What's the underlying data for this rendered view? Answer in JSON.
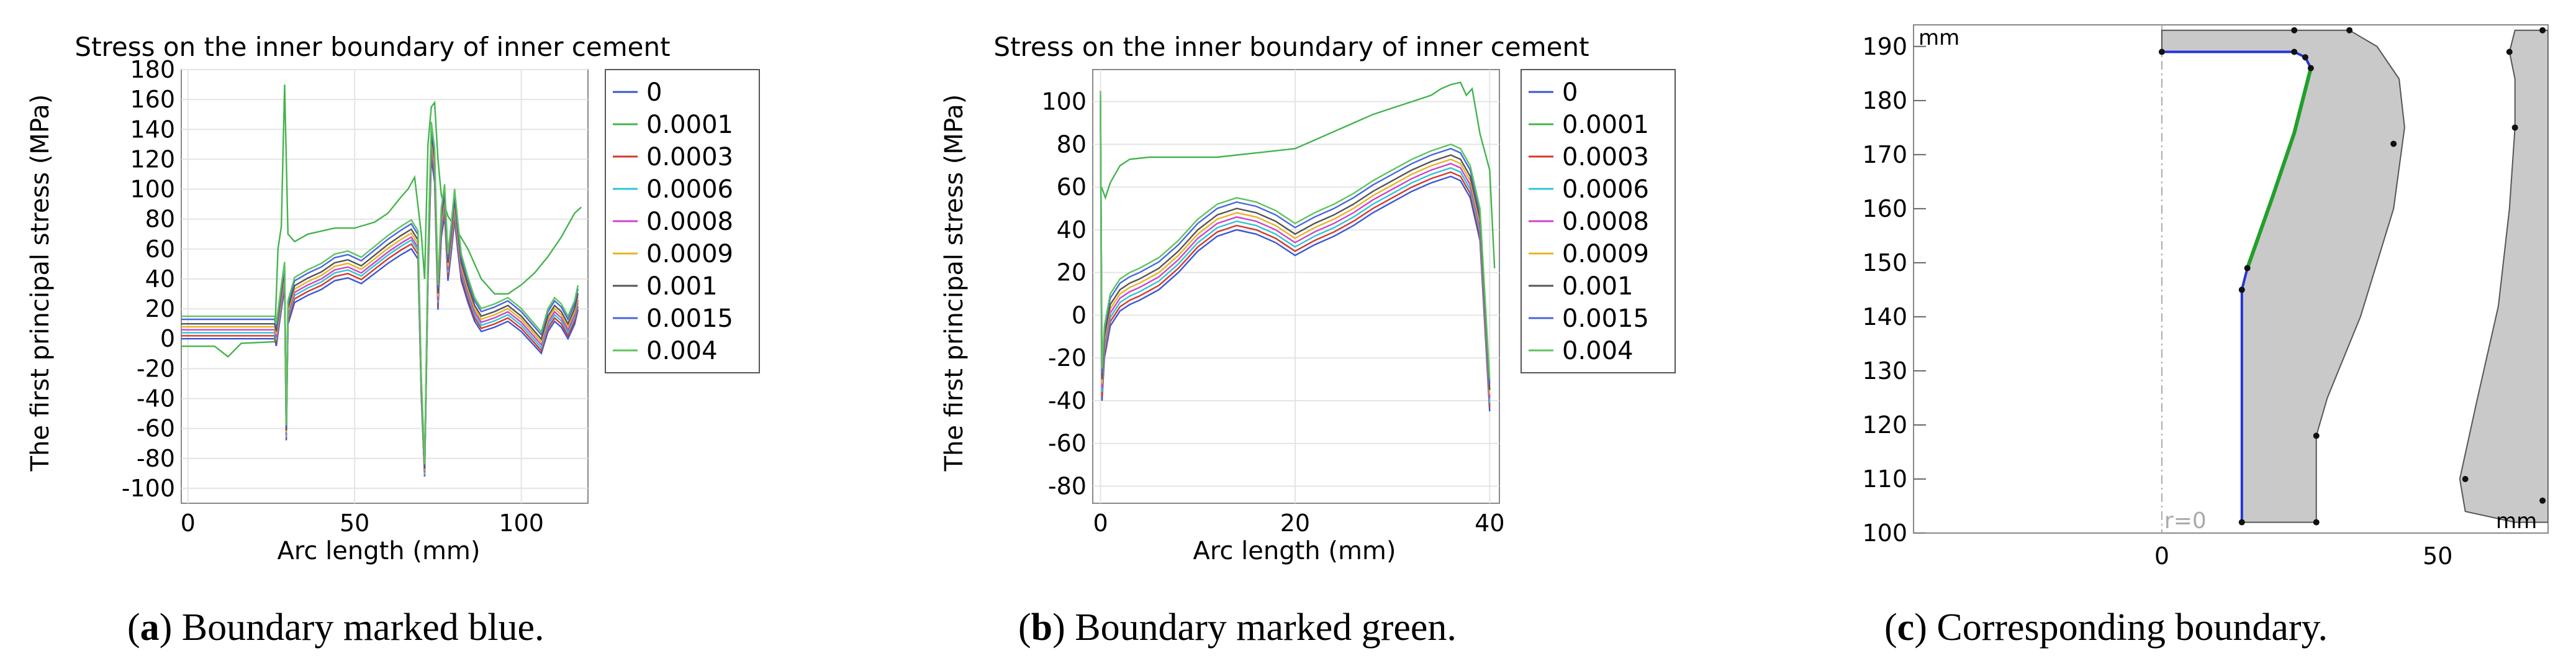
{
  "panels": [
    {
      "id": "a",
      "caption_letter": "a",
      "caption_text": ") Boundary marked blue.",
      "chart_data": {
        "type": "line",
        "title": "Stress on the inner boundary of inner cement",
        "xlabel": "Arc length (mm)",
        "ylabel": "The first principal stress (MPa)",
        "xlim": [
          -2,
          120
        ],
        "ylim": [
          -110,
          180
        ],
        "xticks": [
          0,
          50,
          100
        ],
        "yticks": [
          -100,
          -80,
          -60,
          -40,
          -20,
          0,
          20,
          40,
          60,
          80,
          100,
          120,
          140,
          160,
          180
        ],
        "legend_position": "right",
        "series": [
          {
            "name": "0",
            "color": "#3a56d6",
            "offset": 0,
            "scale": 0.97
          },
          {
            "name": "0.0001",
            "color": "#44b44c",
            "offset": 0,
            "scale": 1.0,
            "special": true
          },
          {
            "name": "0.0003",
            "color": "#d4382c",
            "offset": 2,
            "scale": 0.99
          },
          {
            "name": "0.0006",
            "color": "#2ec4d6",
            "offset": 4,
            "scale": 1.0
          },
          {
            "name": "0.0008",
            "color": "#cc44cc",
            "offset": 6,
            "scale": 1.0
          },
          {
            "name": "0.0009",
            "color": "#e6b422",
            "offset": 8,
            "scale": 1.01
          },
          {
            "name": "0.001",
            "color": "#555555",
            "offset": 10,
            "scale": 1.02
          },
          {
            "name": "0.0015",
            "color": "#4a66e0",
            "offset": 13,
            "scale": 1.03
          },
          {
            "name": "0.004",
            "color": "#5cc45c",
            "offset": 15,
            "scale": 1.04
          }
        ],
        "base_curve": [
          [
            -2,
            0
          ],
          [
            26,
            0
          ],
          [
            26.5,
            -5
          ],
          [
            28,
            20
          ],
          [
            29,
            35
          ],
          [
            29.5,
            -70
          ],
          [
            30,
            10
          ],
          [
            32,
            25
          ],
          [
            36,
            30
          ],
          [
            40,
            34
          ],
          [
            44,
            40
          ],
          [
            48,
            42
          ],
          [
            52,
            38
          ],
          [
            56,
            45
          ],
          [
            60,
            52
          ],
          [
            64,
            58
          ],
          [
            67,
            62
          ],
          [
            69,
            55
          ],
          [
            70,
            -40
          ],
          [
            71,
            -95
          ],
          [
            72,
            40
          ],
          [
            73,
            125
          ],
          [
            74,
            108
          ],
          [
            75,
            20
          ],
          [
            76,
            70
          ],
          [
            77,
            85
          ],
          [
            78,
            40
          ],
          [
            79,
            60
          ],
          [
            80,
            82
          ],
          [
            81,
            60
          ],
          [
            82,
            40
          ],
          [
            84,
            25
          ],
          [
            86,
            12
          ],
          [
            88,
            5
          ],
          [
            92,
            8
          ],
          [
            96,
            12
          ],
          [
            100,
            5
          ],
          [
            104,
            -5
          ],
          [
            106,
            -10
          ],
          [
            108,
            5
          ],
          [
            110,
            12
          ],
          [
            112,
            8
          ],
          [
            114,
            0
          ],
          [
            116,
            10
          ],
          [
            117,
            20
          ]
        ],
        "special_curve": [
          [
            -2,
            -5
          ],
          [
            8,
            -5
          ],
          [
            12,
            -12
          ],
          [
            16,
            -3
          ],
          [
            26,
            -2
          ],
          [
            27,
            60
          ],
          [
            28,
            75
          ],
          [
            29,
            170
          ],
          [
            30,
            70
          ],
          [
            32,
            65
          ],
          [
            36,
            70
          ],
          [
            44,
            74
          ],
          [
            50,
            74
          ],
          [
            56,
            78
          ],
          [
            60,
            84
          ],
          [
            64,
            95
          ],
          [
            66,
            100
          ],
          [
            68,
            108
          ],
          [
            70,
            70
          ],
          [
            71,
            40
          ],
          [
            72,
            130
          ],
          [
            73,
            155
          ],
          [
            74,
            158
          ],
          [
            75,
            120
          ],
          [
            76,
            96
          ],
          [
            78,
            82
          ],
          [
            80,
            75
          ],
          [
            84,
            60
          ],
          [
            88,
            40
          ],
          [
            92,
            30
          ],
          [
            96,
            30
          ],
          [
            100,
            36
          ],
          [
            104,
            44
          ],
          [
            108,
            55
          ],
          [
            112,
            68
          ],
          [
            116,
            84
          ],
          [
            118,
            88
          ]
        ]
      }
    },
    {
      "id": "b",
      "caption_letter": "b",
      "caption_text": ") Boundary marked green.",
      "chart_data": {
        "type": "line",
        "title": "Stress on the inner boundary of inner cement",
        "xlabel": "Arc length (mm)",
        "ylabel": "The first principal stress (MPa)",
        "xlim": [
          -0.8,
          41
        ],
        "ylim": [
          -88,
          115
        ],
        "xticks": [
          0,
          20,
          40
        ],
        "yticks": [
          -80,
          -60,
          -40,
          -20,
          0,
          20,
          40,
          60,
          80,
          100
        ],
        "legend_position": "right",
        "series": [
          {
            "name": "0",
            "color": "#3a56d6",
            "offset": 0,
            "scale": 1.0
          },
          {
            "name": "0.0001",
            "color": "#44b44c",
            "offset": 0,
            "scale": 1.0,
            "special": true
          },
          {
            "name": "0.0003",
            "color": "#d4382c",
            "offset": 2,
            "scale": 1.0
          },
          {
            "name": "0.0006",
            "color": "#2ec4d6",
            "offset": 4,
            "scale": 1.0
          },
          {
            "name": "0.0008",
            "color": "#cc44cc",
            "offset": 6,
            "scale": 1.0
          },
          {
            "name": "0.0009",
            "color": "#e6b422",
            "offset": 8,
            "scale": 1.0
          },
          {
            "name": "0.001",
            "color": "#555555",
            "offset": 10,
            "scale": 1.0
          },
          {
            "name": "0.0015",
            "color": "#4a66e0",
            "offset": 13,
            "scale": 1.0
          },
          {
            "name": "0.004",
            "color": "#5cc45c",
            "offset": 15,
            "scale": 1.0
          }
        ],
        "base_curve": [
          [
            0,
            90
          ],
          [
            0.15,
            -40
          ],
          [
            0.4,
            -20
          ],
          [
            1,
            -5
          ],
          [
            2,
            2
          ],
          [
            3,
            5
          ],
          [
            4,
            7
          ],
          [
            6,
            12
          ],
          [
            8,
            20
          ],
          [
            10,
            30
          ],
          [
            12,
            37
          ],
          [
            14,
            40
          ],
          [
            16,
            38
          ],
          [
            18,
            34
          ],
          [
            20,
            28
          ],
          [
            22,
            33
          ],
          [
            24,
            37
          ],
          [
            26,
            42
          ],
          [
            28,
            48
          ],
          [
            30,
            53
          ],
          [
            32,
            58
          ],
          [
            34,
            62
          ],
          [
            36,
            65
          ],
          [
            37,
            63
          ],
          [
            38,
            55
          ],
          [
            39,
            35
          ],
          [
            40,
            -45
          ]
        ],
        "special_curve": [
          [
            0.1,
            60
          ],
          [
            0.5,
            55
          ],
          [
            1,
            62
          ],
          [
            2,
            70
          ],
          [
            3,
            73
          ],
          [
            5,
            74
          ],
          [
            8,
            74
          ],
          [
            10,
            74
          ],
          [
            12,
            74
          ],
          [
            14,
            75
          ],
          [
            16,
            76
          ],
          [
            18,
            77
          ],
          [
            20,
            78
          ],
          [
            22,
            82
          ],
          [
            24,
            86
          ],
          [
            26,
            90
          ],
          [
            28,
            94
          ],
          [
            30,
            97
          ],
          [
            32,
            100
          ],
          [
            34,
            103
          ],
          [
            35,
            106
          ],
          [
            36,
            108
          ],
          [
            37,
            109
          ],
          [
            37.6,
            103
          ],
          [
            38.2,
            106
          ],
          [
            39,
            85
          ],
          [
            40,
            68
          ],
          [
            40.5,
            22
          ]
        ]
      }
    },
    {
      "id": "c",
      "caption_letter": "c",
      "caption_text": ") Corresponding boundary.",
      "chart_data": {
        "type": "geometry",
        "unit_label": "mm",
        "unit_label_bottom": "mm",
        "axis_label": "r=0",
        "xlim": [
          -45,
          70
        ],
        "ylim": [
          100,
          194
        ],
        "xticks": [
          0,
          50
        ],
        "yticks": [
          100,
          110,
          120,
          130,
          140,
          150,
          160,
          170,
          180,
          190
        ],
        "blue_boundary": [
          [
            14.5,
            102
          ],
          [
            14.5,
            145
          ],
          [
            15,
            147
          ],
          [
            15.5,
            149
          ]
        ],
        "blue_top_boundary": [
          [
            0,
            189
          ],
          [
            24,
            189
          ],
          [
            26,
            188
          ],
          [
            27,
            186
          ]
        ],
        "green_boundary": [
          [
            15.5,
            149
          ],
          [
            20,
            162
          ],
          [
            24,
            174
          ],
          [
            26,
            182
          ],
          [
            27,
            186
          ]
        ],
        "cement_region": [
          [
            0,
            189
          ],
          [
            24,
            189
          ],
          [
            26,
            188
          ],
          [
            27,
            186
          ],
          [
            26,
            182
          ],
          [
            24,
            174
          ],
          [
            20,
            162
          ],
          [
            15.5,
            149
          ],
          [
            15,
            147
          ],
          [
            14.5,
            145
          ],
          [
            14.5,
            102
          ],
          [
            28,
            102
          ],
          [
            28,
            118
          ],
          [
            30,
            125
          ],
          [
            36,
            140
          ],
          [
            42,
            160
          ],
          [
            44,
            175
          ],
          [
            43,
            184
          ],
          [
            39,
            190
          ],
          [
            34,
            193
          ],
          [
            0,
            193
          ]
        ],
        "outer_region": [
          [
            64,
            102
          ],
          [
            55,
            104
          ],
          [
            54,
            110
          ],
          [
            57,
            124
          ],
          [
            61,
            142
          ],
          [
            63,
            160
          ],
          [
            64,
            175
          ],
          [
            64,
            184
          ],
          [
            63,
            189
          ],
          [
            64,
            193
          ],
          [
            70,
            193
          ],
          [
            70,
            102
          ]
        ],
        "vertices": [
          [
            0,
            189
          ],
          [
            24,
            189
          ],
          [
            26,
            188
          ],
          [
            27,
            186
          ],
          [
            15.5,
            149
          ],
          [
            14.5,
            145
          ],
          [
            14.5,
            102
          ],
          [
            28,
            102
          ],
          [
            28,
            118
          ],
          [
            42,
            172
          ],
          [
            34,
            193
          ],
          [
            24,
            193
          ],
          [
            55,
            110
          ],
          [
            64,
            175
          ],
          [
            63,
            189
          ],
          [
            69,
            193
          ],
          [
            69,
            106
          ]
        ]
      }
    }
  ]
}
